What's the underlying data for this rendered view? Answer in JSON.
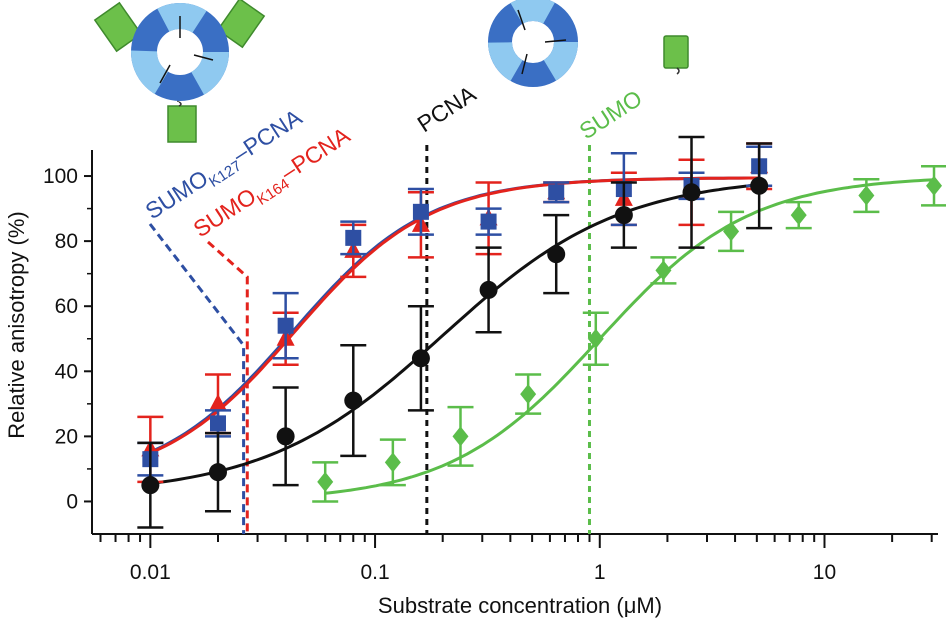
{
  "chart_data": {
    "type": "scatter",
    "x_scale": "log",
    "xlim": [
      0.0055,
      32
    ],
    "ylim": [
      -10,
      108
    ],
    "xlabel": "Substrate concentration (μM)",
    "ylabel": "Relative anisotropy (%)",
    "x_ticks": [
      {
        "value": 0.01,
        "label": "0.01"
      },
      {
        "value": 0.1,
        "label": "0.1"
      },
      {
        "value": 1,
        "label": "1"
      },
      {
        "value": 10,
        "label": "10"
      }
    ],
    "y_ticks": [
      {
        "value": 0,
        "label": "0"
      },
      {
        "value": 20,
        "label": "20"
      },
      {
        "value": 40,
        "label": "40"
      },
      {
        "value": 60,
        "label": "60"
      },
      {
        "value": 80,
        "label": "80"
      },
      {
        "value": 100,
        "label": "100"
      }
    ],
    "series": [
      {
        "name_main": "SUMO",
        "name_sub": "K127",
        "name_tail": "–PCNA",
        "color": "#2e4fa3",
        "marker": "square",
        "points": [
          {
            "x": 0.01,
            "y": 13,
            "err": 5
          },
          {
            "x": 0.02,
            "y": 24,
            "err": 4
          },
          {
            "x": 0.04,
            "y": 54,
            "err": 10
          },
          {
            "x": 0.08,
            "y": 81,
            "err": 5
          },
          {
            "x": 0.16,
            "y": 89,
            "err": 7
          },
          {
            "x": 0.32,
            "y": 86,
            "err": 4
          },
          {
            "x": 0.64,
            "y": 95,
            "err": 3
          },
          {
            "x": 1.28,
            "y": 96,
            "err": 11
          },
          {
            "x": 2.56,
            "y": 97,
            "err": 4
          },
          {
            "x": 5.12,
            "y": 103,
            "err": 6
          }
        ],
        "fit": {
          "bottom": 5,
          "top": 99.5,
          "ec50": 0.043,
          "hill": 1.45
        },
        "ec50_marker": 0.026
      },
      {
        "name_main": "SUMO",
        "name_sub": "K164",
        "name_tail": "–PCNA",
        "color": "#e3231d",
        "marker": "triangle",
        "points": [
          {
            "x": 0.01,
            "y": 16,
            "err": 10
          },
          {
            "x": 0.02,
            "y": 30,
            "err": 9
          },
          {
            "x": 0.04,
            "y": 50,
            "err": 8
          },
          {
            "x": 0.08,
            "y": 77,
            "err": 8
          },
          {
            "x": 0.16,
            "y": 85,
            "err": 10
          },
          {
            "x": 0.32,
            "y": 87,
            "err": 11
          },
          {
            "x": 0.64,
            "y": 95,
            "err": 3
          },
          {
            "x": 1.28,
            "y": 93,
            "err": 8
          },
          {
            "x": 2.56,
            "y": 95,
            "err": 10
          },
          {
            "x": 5.12,
            "y": 103,
            "err": 7
          }
        ],
        "fit": {
          "bottom": 5,
          "top": 99.5,
          "ec50": 0.044,
          "hill": 1.45
        },
        "ec50_marker": 0.027
      },
      {
        "name_main": "PCNA",
        "name_sub": "",
        "name_tail": "",
        "color": "#111111",
        "marker": "circle",
        "points": [
          {
            "x": 0.01,
            "y": 5,
            "err": 13
          },
          {
            "x": 0.02,
            "y": 9,
            "err": 12
          },
          {
            "x": 0.04,
            "y": 20,
            "err": 15
          },
          {
            "x": 0.08,
            "y": 31,
            "err": 17
          },
          {
            "x": 0.16,
            "y": 44,
            "err": 16
          },
          {
            "x": 0.32,
            "y": 65,
            "err": 13
          },
          {
            "x": 0.64,
            "y": 76,
            "err": 12
          },
          {
            "x": 1.28,
            "y": 88,
            "err": 10
          },
          {
            "x": 2.56,
            "y": 95,
            "err": 17
          },
          {
            "x": 5.12,
            "y": 97,
            "err": 13
          }
        ],
        "fit": {
          "bottom": 2,
          "top": 100,
          "ec50": 0.2,
          "hill": 1.1
        },
        "ec50_marker": 0.17
      },
      {
        "name_main": "SUMO",
        "name_sub": "",
        "name_tail": "",
        "color": "#5bbd4a",
        "marker": "diamond",
        "points": [
          {
            "x": 0.06,
            "y": 6,
            "err": 6
          },
          {
            "x": 0.12,
            "y": 12,
            "err": 7
          },
          {
            "x": 0.24,
            "y": 20,
            "err": 9
          },
          {
            "x": 0.48,
            "y": 33,
            "err": 6
          },
          {
            "x": 0.96,
            "y": 50,
            "err": 8
          },
          {
            "x": 1.92,
            "y": 71,
            "err": 4
          },
          {
            "x": 3.84,
            "y": 83,
            "err": 6
          },
          {
            "x": 7.68,
            "y": 88,
            "err": 4
          },
          {
            "x": 15.36,
            "y": 94,
            "err": 5
          },
          {
            "x": 30.72,
            "y": 97,
            "err": 6
          }
        ],
        "fit": {
          "bottom": 0,
          "top": 100,
          "ec50": 1.0,
          "hill": 1.3
        },
        "ec50_marker": 0.9
      }
    ]
  },
  "illustrations": {
    "left": "SUMO-PCNA ring with three attached SUMO molecules",
    "middle": "PCNA ring",
    "right": "SUMO protein"
  }
}
